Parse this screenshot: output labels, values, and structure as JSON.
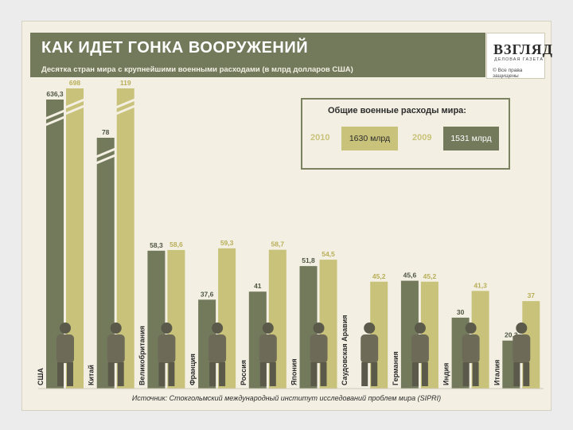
{
  "header": {
    "title": "КАК ИДЕТ ГОНКА ВООРУЖЕНИЙ",
    "subtitle": "Десятка стран мира с крупнейшими военными расходами (в млрд долларов США)"
  },
  "logo": {
    "name": "ВЗГЛЯД",
    "tagline": "ДЕЛОВАЯ ГАЗЕТА",
    "copyright": "© Все права защищены"
  },
  "totals": {
    "title": "Общие военные расходы мира:",
    "items": [
      {
        "year": "2010",
        "value": "1630 млрд"
      },
      {
        "year": "2009",
        "value": "1531 млрд"
      }
    ]
  },
  "source": "Источник: Стокгольмский международный институт исследований проблем мира (SIPRI)",
  "chart_data": {
    "type": "bar",
    "categories": [
      "США",
      "Китай",
      "Великобритания",
      "Франция",
      "Россия",
      "Япония",
      "Саудовская Аравия",
      "Германия",
      "Индия",
      "Италия"
    ],
    "series": [
      {
        "name": "2009",
        "values": [
          636.3,
          78,
          58.3,
          37.6,
          41,
          51.8,
          null,
          45.6,
          30,
          20.3
        ],
        "labels": [
          "636,3",
          "78",
          "58,3",
          "37,6",
          "41",
          "51,8",
          "",
          "45,6",
          "30",
          "20,3"
        ]
      },
      {
        "name": "2010",
        "values": [
          698,
          119,
          58.6,
          59.3,
          58.7,
          54.5,
          45.2,
          45.2,
          41.3,
          37
        ],
        "labels": [
          "698",
          "119",
          "58,6",
          "59,3",
          "58,7",
          "54,5",
          "45,2",
          "45,2",
          "41,3",
          "37"
        ]
      }
    ],
    "broken_axis_categories": [
      "США",
      "Китай"
    ],
    "colors": {
      "2009": "#737a5c",
      "2010": "#c9c27a"
    }
  }
}
